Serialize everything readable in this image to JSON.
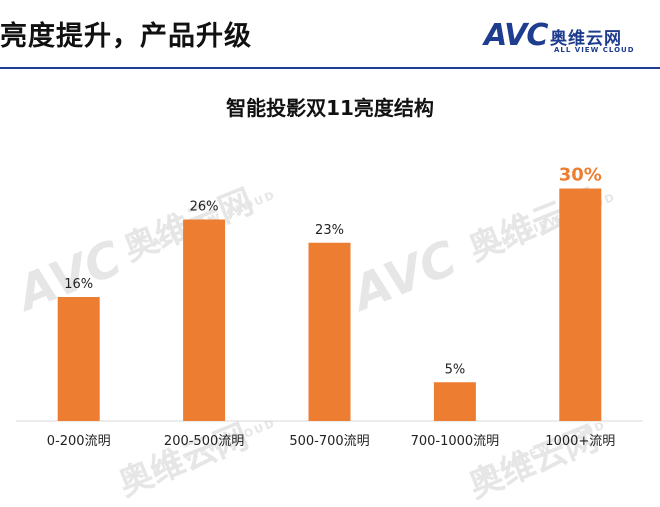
{
  "slide": {
    "title": "亮度提升，产品升级"
  },
  "logo": {
    "mark": "AVC",
    "name_cn": "奥维云网",
    "name_en": "ALL VIEW CLOUD"
  },
  "watermark": {
    "mark": "AVC",
    "name_cn": "奥维云网",
    "name_en": "ALL VIEW CLOUD"
  },
  "colors": {
    "bar": "#ed7d31",
    "brand": "#1f3d8f",
    "axis": "#d9d9d9"
  },
  "chart_data": {
    "type": "bar",
    "title": "智能投影双11亮度结构",
    "categories": [
      "0-200流明",
      "200-500流明",
      "500-700流明",
      "700-1000流明",
      "1000+流明"
    ],
    "values": [
      16,
      26,
      23,
      5,
      30
    ],
    "data_labels": [
      "16%",
      "26%",
      "23%",
      "5%",
      "30%"
    ],
    "highlight_index": 4,
    "ylim": [
      0,
      32
    ],
    "unit": "%",
    "grid": false,
    "legend": false
  }
}
